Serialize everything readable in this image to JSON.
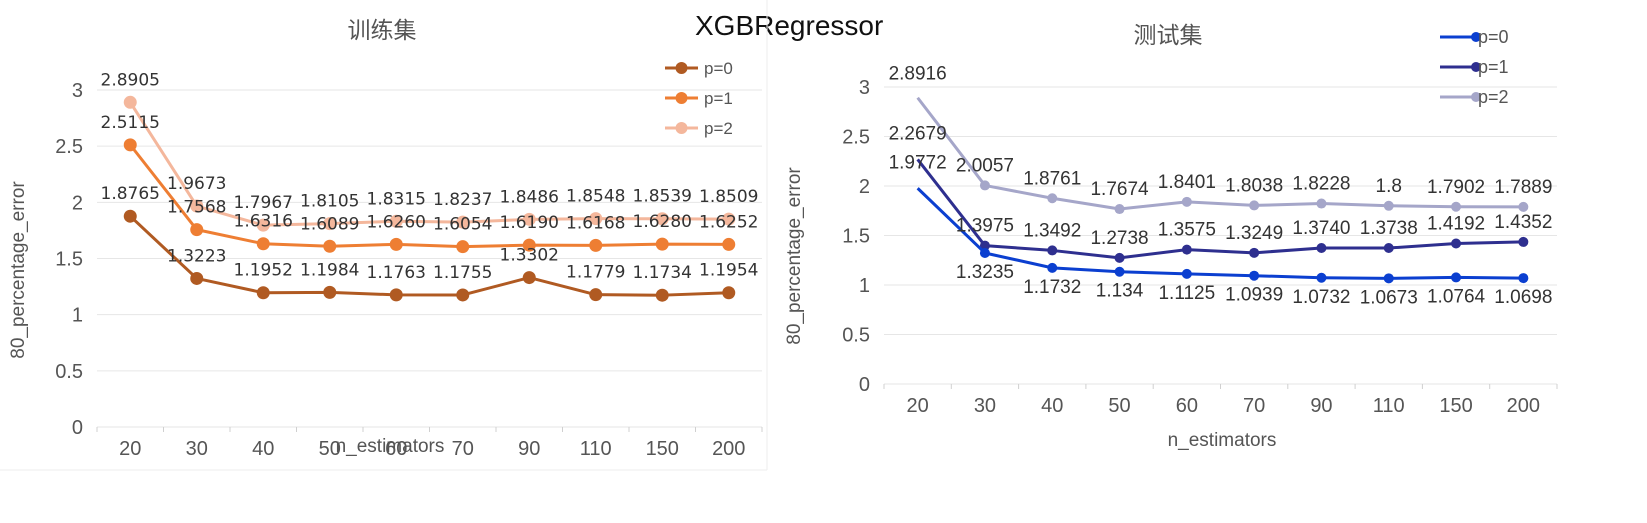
{
  "figure_title": "XGBRegressor",
  "chart_data": [
    {
      "type": "line",
      "title": "训练集",
      "xlabel": "n_estimators",
      "ylabel": "80_percentage_error",
      "categories": [
        "20",
        "30",
        "40",
        "50",
        "60",
        "70",
        "90",
        "110",
        "150",
        "200"
      ],
      "ylim": [
        0,
        3
      ],
      "yticks": [
        "0",
        "0.5",
        "1",
        "1.5",
        "2",
        "2.5",
        "3"
      ],
      "grid": true,
      "legend_position": "top-right",
      "series": [
        {
          "name": "p=0",
          "color": "#B05A22",
          "values": [
            1.8765,
            1.3223,
            1.1952,
            1.1984,
            1.1763,
            1.1755,
            1.3302,
            1.1779,
            1.1734,
            1.1954
          ],
          "labels": [
            "1.8765",
            "1.3223",
            "1.1952",
            "1.1984",
            "1.1763",
            "1.1755",
            "1.3302",
            "1.1779",
            "1.1734",
            "1.1954"
          ]
        },
        {
          "name": "p=1",
          "color": "#EE7E33",
          "values": [
            2.5115,
            1.7568,
            1.6316,
            1.6089,
            1.626,
            1.6054,
            1.619,
            1.6168,
            1.628,
            1.6252
          ],
          "labels": [
            "2.5115",
            "1.7568",
            "1.6316",
            "1.6089",
            "1.6260",
            "1.6054",
            "1.6190",
            "1.6168",
            "1.6280",
            "1.6252"
          ]
        },
        {
          "name": "p=2",
          "color": "#F4B79C",
          "values": [
            2.8905,
            1.9673,
            1.7967,
            1.8105,
            1.8315,
            1.8237,
            1.8486,
            1.8548,
            1.8539,
            1.8509
          ],
          "labels": [
            "2.8905",
            "1.9673",
            "1.7967",
            "1.8105",
            "1.8315",
            "1.8237",
            "1.8486",
            "1.8548",
            "1.8539",
            "1.8509"
          ]
        }
      ]
    },
    {
      "type": "line",
      "title": "测试集",
      "xlabel": "n_estimators",
      "ylabel": "80_percentage_error",
      "categories": [
        "20",
        "30",
        "40",
        "50",
        "60",
        "70",
        "90",
        "110",
        "150",
        "200"
      ],
      "ylim": [
        0,
        3
      ],
      "yticks": [
        "0",
        "0.5",
        "1",
        "1.5",
        "2",
        "2.5",
        "3"
      ],
      "grid": true,
      "legend_position": "top-right",
      "series": [
        {
          "name": "p=0",
          "color": "#0B3FD0",
          "values": [
            1.9772,
            1.3235,
            1.1732,
            1.134,
            1.1125,
            1.0939,
            1.0732,
            1.0673,
            1.0764,
            1.0698
          ],
          "labels": [
            "1.9772",
            "1.3235",
            "1.1732",
            "1.134",
            "1.1125",
            "1.0939",
            "1.0732",
            "1.0673",
            "1.0764",
            "1.0698"
          ]
        },
        {
          "name": "p=1",
          "color": "#2E2F8F",
          "values": [
            2.2679,
            1.3975,
            1.3492,
            1.2738,
            1.3575,
            1.3249,
            1.374,
            1.3738,
            1.4192,
            1.4352
          ],
          "labels": [
            "2.2679",
            "1.3975",
            "1.3492",
            "1.2738",
            "1.3575",
            "1.3249",
            "1.3740",
            "1.3738",
            "1.4192",
            "1.4352"
          ]
        },
        {
          "name": "p=2",
          "color": "#A5A6C9",
          "values": [
            2.8916,
            2.0057,
            1.8761,
            1.7674,
            1.8401,
            1.8038,
            1.8228,
            1.8,
            1.7902,
            1.7889
          ],
          "labels": [
            "2.8916",
            "2.0057",
            "1.8761",
            "1.7674",
            "1.8401",
            "1.8038",
            "1.8228",
            "1.8",
            "1.7902",
            "1.7889"
          ]
        }
      ]
    }
  ]
}
